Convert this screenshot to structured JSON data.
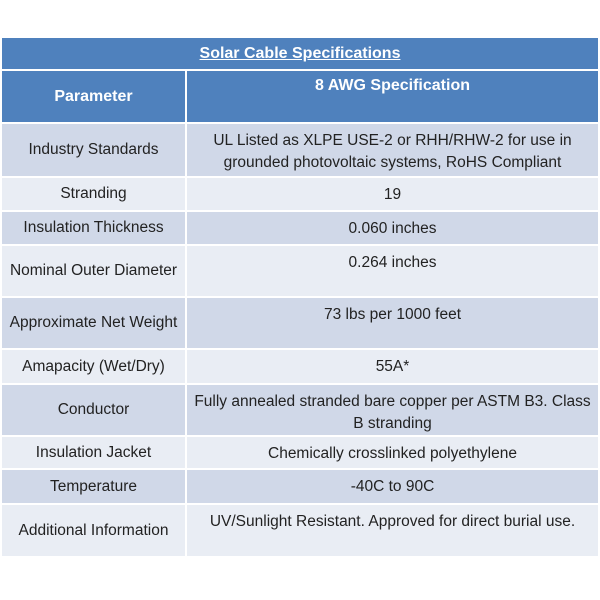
{
  "title": "Solar Cable Specifications",
  "headers": [
    "Parameter",
    "8 AWG Specification"
  ],
  "rows": [
    {
      "param": "Industry Standards",
      "value": "UL Listed as XLPE USE-2 or RHH/RHW-2 for use in grounded photovoltaic systems, RoHS Compliant"
    },
    {
      "param": "Stranding",
      "value": "19"
    },
    {
      "param": "Insulation Thickness",
      "value": "0.060 inches"
    },
    {
      "param": "Nominal Outer Diameter",
      "value": "0.264 inches"
    },
    {
      "param": "Approximate Net Weight",
      "value": "73 lbs per 1000 feet"
    },
    {
      "param": "Amapacity (Wet/Dry)",
      "value": "55A*"
    },
    {
      "param": "Conductor",
      "value": "Fully annealed stranded bare copper per ASTM B3. Class B stranding"
    },
    {
      "param": "Insulation Jacket",
      "value": "Chemically crosslinked polyethylene"
    },
    {
      "param": "Temperature",
      "value": "-40C to 90C"
    },
    {
      "param": "Additional Information",
      "value": "UV/Sunlight Resistant. Approved for direct burial use."
    }
  ],
  "colors": {
    "header": "#4f81bd",
    "row_dark": "#d0d8e8",
    "row_light": "#e9edf4"
  }
}
